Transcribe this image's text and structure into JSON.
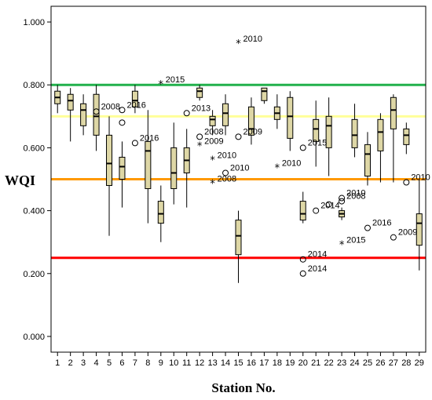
{
  "chart_data": {
    "type": "boxplot",
    "title": "",
    "xlabel": "Station No.",
    "ylabel": "WQI",
    "ylim": [
      -0.05,
      1.05
    ],
    "yticks": [
      "0.000",
      "0.200",
      "0.400",
      "0.600",
      "0.800",
      "1.000"
    ],
    "categories": [
      "1",
      "2",
      "3",
      "4",
      "5",
      "6",
      "7",
      "8",
      "9",
      "10",
      "11",
      "12",
      "13",
      "14",
      "15",
      "16",
      "17",
      "18",
      "19",
      "20",
      "21",
      "22",
      "23",
      "24",
      "25",
      "26",
      "27",
      "28",
      "29"
    ],
    "reference_lines": [
      {
        "y": 0.8,
        "color": "#22b14c"
      },
      {
        "y": 0.7,
        "color": "#ffff99"
      },
      {
        "y": 0.5,
        "color": "#ff9900"
      },
      {
        "y": 0.25,
        "color": "#ff0000"
      }
    ],
    "boxes": [
      {
        "station": "1",
        "min": 0.71,
        "q1": 0.74,
        "median": 0.76,
        "q3": 0.78,
        "max": 0.8
      },
      {
        "station": "2",
        "min": 0.62,
        "q1": 0.72,
        "median": 0.75,
        "q3": 0.77,
        "max": 0.79
      },
      {
        "station": "3",
        "min": 0.64,
        "q1": 0.67,
        "median": 0.72,
        "q3": 0.74,
        "max": 0.77
      },
      {
        "station": "4",
        "min": 0.59,
        "q1": 0.64,
        "median": 0.7,
        "q3": 0.77,
        "max": 0.8
      },
      {
        "station": "5",
        "min": 0.32,
        "q1": 0.48,
        "median": 0.55,
        "q3": 0.64,
        "max": 0.7
      },
      {
        "station": "6",
        "min": 0.41,
        "q1": 0.5,
        "median": 0.54,
        "q3": 0.57,
        "max": 0.62
      },
      {
        "station": "7",
        "min": 0.71,
        "q1": 0.73,
        "median": 0.75,
        "q3": 0.78,
        "max": 0.8
      },
      {
        "station": "8",
        "min": 0.36,
        "q1": 0.47,
        "median": 0.59,
        "q3": 0.62,
        "max": 0.72
      },
      {
        "station": "9",
        "min": 0.3,
        "q1": 0.36,
        "median": 0.39,
        "q3": 0.43,
        "max": 0.48
      },
      {
        "station": "10",
        "min": 0.42,
        "q1": 0.47,
        "median": 0.52,
        "q3": 0.6,
        "max": 0.68
      },
      {
        "station": "11",
        "min": 0.41,
        "q1": 0.52,
        "median": 0.56,
        "q3": 0.6,
        "max": 0.66
      },
      {
        "station": "12",
        "min": 0.75,
        "q1": 0.76,
        "median": 0.78,
        "q3": 0.79,
        "max": 0.8
      },
      {
        "station": "13",
        "min": 0.64,
        "q1": 0.67,
        "median": 0.69,
        "q3": 0.7,
        "max": 0.72
      },
      {
        "station": "14",
        "min": 0.64,
        "q1": 0.67,
        "median": 0.71,
        "q3": 0.74,
        "max": 0.77
      },
      {
        "station": "15",
        "min": 0.17,
        "q1": 0.26,
        "median": 0.32,
        "q3": 0.37,
        "max": 0.4
      },
      {
        "station": "16",
        "min": 0.61,
        "q1": 0.64,
        "median": 0.66,
        "q3": 0.73,
        "max": 0.76
      },
      {
        "station": "17",
        "min": 0.74,
        "q1": 0.75,
        "median": 0.78,
        "q3": 0.79,
        "max": 0.79
      },
      {
        "station": "18",
        "min": 0.66,
        "q1": 0.69,
        "median": 0.71,
        "q3": 0.73,
        "max": 0.77
      },
      {
        "station": "19",
        "min": 0.59,
        "q1": 0.63,
        "median": 0.7,
        "q3": 0.76,
        "max": 0.78
      },
      {
        "station": "20",
        "min": 0.36,
        "q1": 0.37,
        "median": 0.39,
        "q3": 0.43,
        "max": 0.46
      },
      {
        "station": "21",
        "min": 0.54,
        "q1": 0.62,
        "median": 0.66,
        "q3": 0.69,
        "max": 0.75
      },
      {
        "station": "22",
        "min": 0.51,
        "q1": 0.6,
        "median": 0.67,
        "q3": 0.7,
        "max": 0.76
      },
      {
        "station": "23",
        "min": 0.37,
        "q1": 0.38,
        "median": 0.39,
        "q3": 0.4,
        "max": 0.41
      },
      {
        "station": "24",
        "min": 0.57,
        "q1": 0.6,
        "median": 0.64,
        "q3": 0.69,
        "max": 0.74
      },
      {
        "station": "25",
        "min": 0.48,
        "q1": 0.51,
        "median": 0.58,
        "q3": 0.61,
        "max": 0.65
      },
      {
        "station": "26",
        "min": 0.49,
        "q1": 0.59,
        "median": 0.65,
        "q3": 0.69,
        "max": 0.71
      },
      {
        "station": "27",
        "min": 0.49,
        "q1": 0.66,
        "median": 0.72,
        "q3": 0.76,
        "max": 0.77
      },
      {
        "station": "28",
        "min": 0.58,
        "q1": 0.61,
        "median": 0.64,
        "q3": 0.66,
        "max": 0.68
      },
      {
        "station": "29",
        "min": 0.21,
        "q1": 0.29,
        "median": 0.36,
        "q3": 0.39,
        "max": 0.5
      }
    ],
    "outliers": [
      {
        "station": "4",
        "value": 0.715,
        "marker": "circle",
        "label": "2008"
      },
      {
        "station": "6",
        "value": 0.72,
        "marker": "circle",
        "label": "2016"
      },
      {
        "station": "6",
        "value": 0.68,
        "marker": "circle",
        "label": ""
      },
      {
        "station": "7",
        "value": 0.615,
        "marker": "circle",
        "label": "2016"
      },
      {
        "station": "9",
        "value": 0.8,
        "marker": "star",
        "label": "2015"
      },
      {
        "station": "11",
        "value": 0.71,
        "marker": "circle",
        "label": "2013"
      },
      {
        "station": "12",
        "value": 0.635,
        "marker": "circle",
        "label": "2008"
      },
      {
        "station": "12",
        "value": 0.605,
        "marker": "star",
        "label": "2009"
      },
      {
        "station": "13",
        "value": 0.56,
        "marker": "star",
        "label": "2010"
      },
      {
        "station": "13",
        "value": 0.485,
        "marker": "star",
        "label": "2008"
      },
      {
        "station": "14",
        "value": 0.52,
        "marker": "circle",
        "label": "2010"
      },
      {
        "station": "15",
        "value": 0.93,
        "marker": "star",
        "label": "2010"
      },
      {
        "station": "15",
        "value": 0.635,
        "marker": "circle",
        "label": "2009"
      },
      {
        "station": "18",
        "value": 0.535,
        "marker": "star",
        "label": "2010"
      },
      {
        "station": "20",
        "value": 0.6,
        "marker": "circle",
        "label": "2015"
      },
      {
        "station": "20",
        "value": 0.245,
        "marker": "circle",
        "label": "2014"
      },
      {
        "station": "20",
        "value": 0.2,
        "marker": "circle",
        "label": "2014"
      },
      {
        "station": "21",
        "value": 0.4,
        "marker": "circle",
        "label": "2014"
      },
      {
        "station": "22",
        "value": 0.42,
        "marker": "circle",
        "label": ""
      },
      {
        "station": "23",
        "value": 0.44,
        "marker": "circle",
        "label": "2010"
      },
      {
        "station": "23",
        "value": 0.43,
        "marker": "circle",
        "label": "2008"
      },
      {
        "station": "23",
        "value": 0.29,
        "marker": "star",
        "label": "2015"
      },
      {
        "station": "25",
        "value": 0.345,
        "marker": "circle",
        "label": "2016"
      },
      {
        "station": "27",
        "value": 0.315,
        "marker": "circle",
        "label": "2009"
      },
      {
        "station": "28",
        "value": 0.49,
        "marker": "circle",
        "label": "2010"
      }
    ],
    "box_fill": "#ded7a6",
    "grid": false,
    "legend": "none"
  }
}
